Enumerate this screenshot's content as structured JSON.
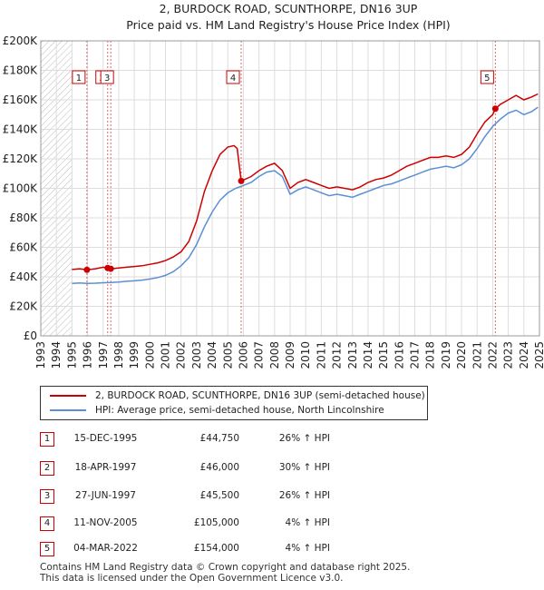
{
  "chart_data": {
    "type": "line",
    "title": "2, BURDOCK ROAD, SCUNTHORPE, DN16 3UP",
    "subtitle": "Price paid vs. HM Land Registry's House Price Index (HPI)",
    "xlabel": "",
    "ylabel": "",
    "xlim": [
      1993,
      2025
    ],
    "ylim": [
      0,
      200000
    ],
    "x_ticks": [
      "1993",
      "1994",
      "1995",
      "1996",
      "1997",
      "1998",
      "1999",
      "2000",
      "2001",
      "2002",
      "2003",
      "2004",
      "2005",
      "2006",
      "2007",
      "2008",
      "2009",
      "2010",
      "2011",
      "2012",
      "2013",
      "2014",
      "2015",
      "2016",
      "2017",
      "2018",
      "2019",
      "2020",
      "2021",
      "2022",
      "2023",
      "2024",
      "2025"
    ],
    "y_ticks": [
      {
        "value": 0,
        "label": "£0"
      },
      {
        "value": 20000,
        "label": "£20K"
      },
      {
        "value": 40000,
        "label": "£40K"
      },
      {
        "value": 60000,
        "label": "£60K"
      },
      {
        "value": 80000,
        "label": "£80K"
      },
      {
        "value": 100000,
        "label": "£100K"
      },
      {
        "value": 120000,
        "label": "£120K"
      },
      {
        "value": 140000,
        "label": "£140K"
      },
      {
        "value": 160000,
        "label": "£160K"
      },
      {
        "value": 180000,
        "label": "£180K"
      },
      {
        "value": 200000,
        "label": "£200K"
      }
    ],
    "hatch_before": 1995.0,
    "grid": true,
    "series": [
      {
        "name": "2, BURDOCK ROAD, SCUNTHORPE, DN16 3UP (semi-detached house)",
        "color": "#cc0000",
        "x": [
          1995.0,
          1995.5,
          1995.96,
          1996.5,
          1997.0,
          1997.29,
          1997.49,
          1998.0,
          1998.5,
          1999.0,
          1999.5,
          2000.0,
          2000.5,
          2001.0,
          2001.5,
          2002.0,
          2002.5,
          2003.0,
          2003.5,
          2004.0,
          2004.5,
          2005.0,
          2005.4,
          2005.6,
          2005.86,
          2006.5,
          2007.0,
          2007.5,
          2008.0,
          2008.5,
          2009.0,
          2009.5,
          2010.0,
          2010.5,
          2011.0,
          2011.5,
          2012.0,
          2012.5,
          2013.0,
          2013.5,
          2014.0,
          2014.5,
          2015.0,
          2015.5,
          2016.0,
          2016.5,
          2017.0,
          2017.5,
          2018.0,
          2018.5,
          2019.0,
          2019.5,
          2020.0,
          2020.5,
          2021.0,
          2021.5,
          2022.0,
          2022.17,
          2022.5,
          2023.0,
          2023.5,
          2024.0,
          2024.5,
          2024.9
        ],
        "y": [
          45000,
          45500,
          44750,
          45500,
          46500,
          46000,
          45500,
          46000,
          46500,
          47000,
          47500,
          48500,
          49500,
          51000,
          53500,
          57000,
          64000,
          78000,
          98000,
          112000,
          123000,
          128000,
          129000,
          127000,
          105000,
          108000,
          112000,
          115000,
          117000,
          112000,
          100000,
          104000,
          106000,
          104000,
          102000,
          100000,
          101000,
          100000,
          99000,
          101000,
          104000,
          106000,
          107000,
          109000,
          112000,
          115000,
          117000,
          119000,
          121000,
          121000,
          122000,
          121000,
          123000,
          128000,
          137000,
          145000,
          150000,
          154000,
          157000,
          160000,
          163000,
          160000,
          162000,
          164000
        ]
      },
      {
        "name": "HPI: Average price, semi-detached house, North Lincolnshire",
        "color": "#5b8fd4",
        "x": [
          1995.0,
          1995.5,
          1996.0,
          1996.5,
          1997.0,
          1997.5,
          1998.0,
          1998.5,
          1999.0,
          1999.5,
          2000.0,
          2000.5,
          2001.0,
          2001.5,
          2002.0,
          2002.5,
          2003.0,
          2003.5,
          2004.0,
          2004.5,
          2005.0,
          2005.5,
          2006.0,
          2006.5,
          2007.0,
          2007.5,
          2008.0,
          2008.5,
          2009.0,
          2009.5,
          2010.0,
          2010.5,
          2011.0,
          2011.5,
          2012.0,
          2012.5,
          2013.0,
          2013.5,
          2014.0,
          2014.5,
          2015.0,
          2015.5,
          2016.0,
          2016.5,
          2017.0,
          2017.5,
          2018.0,
          2018.5,
          2019.0,
          2019.5,
          2020.0,
          2020.5,
          2021.0,
          2021.5,
          2022.0,
          2022.5,
          2023.0,
          2023.5,
          2024.0,
          2024.5,
          2024.9
        ],
        "y": [
          35500,
          35800,
          35500,
          35700,
          36000,
          36200,
          36500,
          37000,
          37300,
          37800,
          38500,
          39500,
          41000,
          43500,
          47500,
          53000,
          62000,
          74000,
          84000,
          92000,
          97000,
          100000,
          102000,
          104000,
          108000,
          111000,
          112000,
          108000,
          96000,
          99000,
          101000,
          99000,
          97000,
          95000,
          96000,
          95000,
          94000,
          96000,
          98000,
          100000,
          102000,
          103000,
          105000,
          107000,
          109000,
          111000,
          113000,
          114000,
          115000,
          114000,
          116000,
          120000,
          127000,
          135000,
          142000,
          147000,
          151000,
          153000,
          150000,
          152000,
          155000
        ]
      }
    ],
    "sales": [
      {
        "id": "1",
        "x": 1995.96,
        "y": 44750
      },
      {
        "id": "2",
        "x": 1997.29,
        "y": 46000
      },
      {
        "id": "3",
        "x": 1997.49,
        "y": 45500
      },
      {
        "id": "4",
        "x": 2005.86,
        "y": 105000
      },
      {
        "id": "5",
        "x": 2022.17,
        "y": 154000
      }
    ]
  },
  "legend": {
    "property_label": "2, BURDOCK ROAD, SCUNTHORPE, DN16 3UP (semi-detached house)",
    "hpi_label": "HPI: Average price, semi-detached house, North Lincolnshire",
    "property_color": "#cc0000",
    "hpi_color": "#5b8fd4"
  },
  "sales_table": [
    {
      "num": "1",
      "date": "15-DEC-1995",
      "price": "£44,750",
      "hpi": "26% ↑ HPI"
    },
    {
      "num": "2",
      "date": "18-APR-1997",
      "price": "£46,000",
      "hpi": "30% ↑ HPI"
    },
    {
      "num": "3",
      "date": "27-JUN-1997",
      "price": "£45,500",
      "hpi": "26% ↑ HPI"
    },
    {
      "num": "4",
      "date": "11-NOV-2005",
      "price": "£105,000",
      "hpi": "4% ↑ HPI"
    },
    {
      "num": "5",
      "date": "04-MAR-2022",
      "price": "£154,000",
      "hpi": "4% ↑ HPI"
    }
  ],
  "footer": {
    "line1": "Contains HM Land Registry data © Crown copyright and database right 2025.",
    "line2": "This data is licensed under the Open Government Licence v3.0."
  }
}
